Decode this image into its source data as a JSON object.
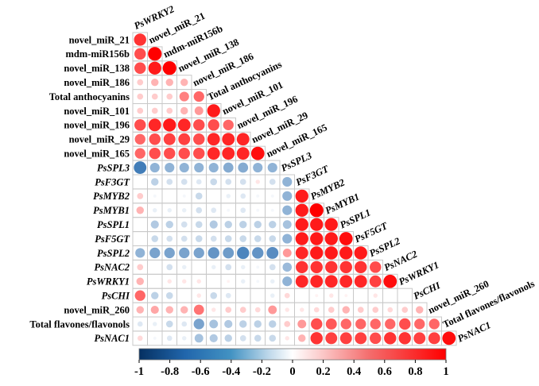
{
  "chart_data": {
    "type": "correlation-matrix-lower-triangle",
    "title": "",
    "variables": [
      {
        "label": "PsWRKY2",
        "italic": true
      },
      {
        "label": "novel_miR_21",
        "italic": false
      },
      {
        "label": "mdm-miR156b",
        "italic": false
      },
      {
        "label": "novel_miR_138",
        "italic": false
      },
      {
        "label": "novel_miR_186",
        "italic": false
      },
      {
        "label": "Total anthocyanins",
        "italic": false
      },
      {
        "label": "novel_miR_101",
        "italic": false
      },
      {
        "label": "novel_miR_196",
        "italic": false
      },
      {
        "label": "novel_miR_29",
        "italic": false
      },
      {
        "label": "novel_miR_165",
        "italic": false
      },
      {
        "label": "PsSPL3",
        "italic": true
      },
      {
        "label": "PsF3GT",
        "italic": true
      },
      {
        "label": "PsMYB2",
        "italic": true
      },
      {
        "label": "PsMYB1",
        "italic": true
      },
      {
        "label": "PsSPL1",
        "italic": true
      },
      {
        "label": "PsF5GT",
        "italic": true
      },
      {
        "label": "PsSPL2",
        "italic": true
      },
      {
        "label": "PsNAC2",
        "italic": true
      },
      {
        "label": "PsWRKY1",
        "italic": true
      },
      {
        "label": "PsCHI",
        "italic": true
      },
      {
        "label": "novel_miR_260",
        "italic": false
      },
      {
        "label": "Total flavones/flavonols",
        "italic": false
      },
      {
        "label": "PsNAC1",
        "italic": true
      }
    ],
    "matrix": [
      [],
      [
        0.8
      ],
      [
        0.7,
        1.0
      ],
      [
        0.7,
        0.9,
        1.0
      ],
      [
        0.2,
        0.3,
        0.3,
        0.3
      ],
      [
        0.2,
        0.2,
        0.2,
        0.5,
        0.6
      ],
      [
        0.2,
        0.2,
        0.2,
        0.3,
        0.4,
        0.9
      ],
      [
        0.7,
        0.85,
        0.9,
        0.85,
        0.7,
        0.7,
        0.6
      ],
      [
        0.6,
        0.7,
        0.75,
        0.75,
        0.7,
        0.85,
        0.85,
        0.85
      ],
      [
        0.6,
        0.7,
        0.7,
        0.7,
        0.7,
        0.85,
        0.85,
        0.85,
        0.95
      ],
      [
        -0.85,
        -0.5,
        -0.5,
        -0.5,
        -0.5,
        -0.5,
        -0.55,
        -0.55,
        -0.5,
        -0.5
      ],
      [
        0.0,
        -0.3,
        -0.2,
        -0.2,
        -0.15,
        -0.25,
        -0.2,
        -0.2,
        0.1,
        -0.2,
        -0.5
      ],
      [
        0.2,
        -0.05,
        0.0,
        -0.05,
        -0.25,
        0.0,
        -0.1,
        -0.15,
        -0.05,
        -0.05,
        -0.5,
        0.9
      ],
      [
        0.3,
        -0.1,
        -0.1,
        -0.1,
        -0.2,
        -0.15,
        -0.05,
        -0.15,
        -0.05,
        -0.05,
        -0.5,
        0.9,
        1.0
      ],
      [
        0.0,
        -0.35,
        -0.3,
        -0.2,
        -0.25,
        -0.35,
        -0.3,
        -0.3,
        -0.3,
        -0.3,
        -0.4,
        0.9,
        0.9,
        0.9
      ],
      [
        0.0,
        -0.25,
        -0.2,
        -0.2,
        -0.25,
        -0.2,
        -0.25,
        -0.25,
        -0.25,
        -0.25,
        -0.5,
        0.9,
        0.9,
        0.9,
        0.95
      ],
      [
        -0.5,
        -0.6,
        -0.6,
        -0.6,
        -0.6,
        -0.7,
        -0.65,
        -0.8,
        -0.7,
        -0.75,
        0.4,
        0.85,
        0.9,
        0.9,
        0.9,
        0.9
      ],
      [
        0.2,
        0.0,
        -0.2,
        -0.1,
        0.0,
        -0.1,
        -0.2,
        -0.1,
        -0.05,
        -0.2,
        -0.45,
        0.8,
        0.8,
        0.8,
        0.8,
        0.8,
        0.7
      ],
      [
        0.3,
        0.0,
        0.1,
        0.1,
        0.1,
        0.0,
        0.05,
        -0.1,
        -0.05,
        -0.1,
        -0.5,
        0.85,
        0.85,
        0.85,
        0.85,
        0.85,
        0.75,
        0.95
      ],
      [
        0.6,
        -0.3,
        -0.25,
        0.0,
        0.1,
        -0.25,
        -0.15,
        0.0,
        0.0,
        -0.1,
        0.15,
        0.0,
        0.05,
        0.1,
        0.05,
        0.0,
        0.1,
        0.0,
        0.0
      ],
      [
        0.3,
        0.35,
        0.3,
        0.3,
        0.55,
        0.1,
        0.2,
        0.2,
        0.15,
        0.4,
        0.1,
        0.1,
        0.15,
        0.2,
        0.3,
        0.2,
        0.2,
        0.15,
        0.2,
        0.3
      ],
      [
        -0.15,
        -0.1,
        -0.25,
        -0.15,
        -0.6,
        -0.4,
        -0.35,
        -0.3,
        -0.3,
        -0.3,
        0.2,
        0.4,
        0.7,
        0.65,
        0.6,
        0.6,
        0.6,
        0.6,
        0.7,
        0.6,
        0.6
      ],
      [
        0.15,
        -0.05,
        -0.15,
        -0.1,
        -0.4,
        -0.35,
        -0.3,
        -0.2,
        -0.25,
        -0.25,
        0.1,
        0.3,
        0.8,
        0.75,
        0.75,
        0.75,
        0.7,
        0.8,
        0.8,
        0.75,
        0.75,
        0.95
      ]
    ],
    "color_scale": {
      "min": -1,
      "max": 1,
      "ticks": [
        "-1",
        "-0.8",
        "-0.6",
        "-0.4",
        "-0.2",
        "0",
        "0.2",
        "0.4",
        "0.6",
        "0.8",
        "1"
      ],
      "negative_color": "#2166ac",
      "mid_color": "#ffffff",
      "positive_color": "#ff0000"
    },
    "legend": "colorbar-bottom"
  }
}
